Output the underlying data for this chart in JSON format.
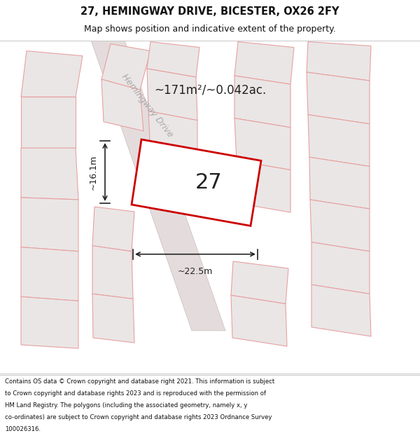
{
  "title_line1": "27, HEMINGWAY DRIVE, BICESTER, OX26 2FY",
  "title_line2": "Map shows position and indicative extent of the property.",
  "footer_lines": [
    "Contains OS data © Crown copyright and database right 2021. This information is subject",
    "to Crown copyright and database rights 2023 and is reproduced with the permission of",
    "HM Land Registry. The polygons (including the associated geometry, namely x, y",
    "co-ordinates) are subject to Crown copyright and database rights 2023 Ordnance Survey",
    "100026316."
  ],
  "bg_color": "#f5f5f5",
  "map_bg": "#eeecec",
  "title_bg": "#ffffff",
  "footer_bg": "#ffffff",
  "main_plot_color": "#cc0000",
  "other_plot_color": "#e8a0a0",
  "area_text": "~171m²/~0.042ac.",
  "plot_number": "27",
  "dim_width": "~22.5m",
  "dim_height": "~16.1m",
  "street_name": "Hemingway Drive"
}
